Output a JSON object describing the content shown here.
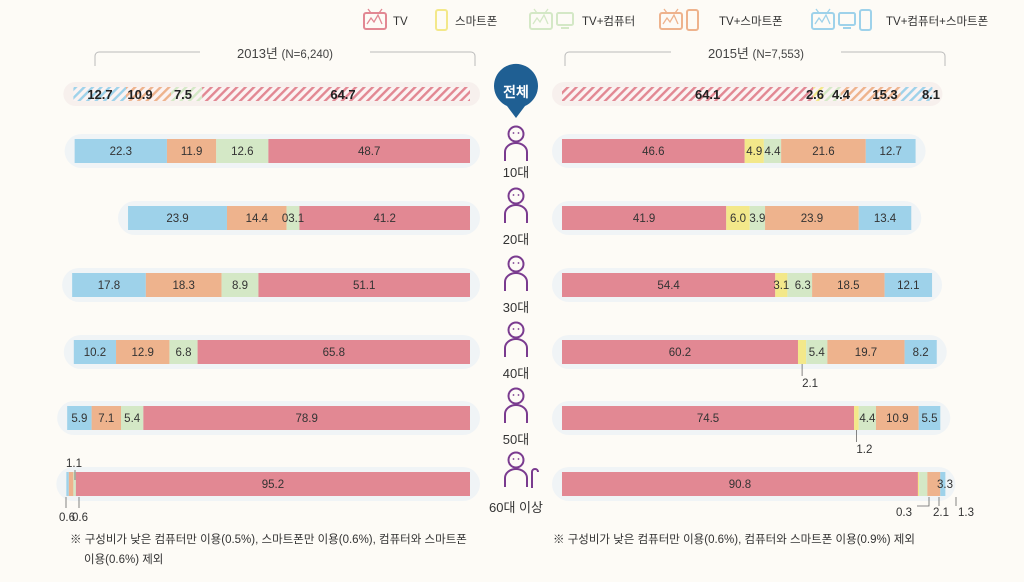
{
  "chart_data": {
    "type": "bar",
    "orientation": "horizontal-stacked",
    "legend": {
      "placement": "top-right",
      "items": [
        {
          "key": "tv",
          "label": "TV",
          "icon": "tv-icon",
          "color": "#e28893"
        },
        {
          "key": "sp",
          "label": "스마트폰",
          "icon": "smartphone-icon",
          "color": "#f3e88a"
        },
        {
          "key": "tvpc",
          "label": "TV+컴퓨터",
          "icon": "tv-computer-icon",
          "color": "#d4e8c6"
        },
        {
          "key": "tvsp",
          "label": "TV+스마트폰",
          "icon": "tv-smartphone-icon",
          "color": "#eeb38d"
        },
        {
          "key": "all",
          "label": "TV+컴퓨터+스마트폰",
          "icon": "tv-computer-smartphone-icon",
          "color": "#9ed2ea"
        }
      ]
    },
    "left": {
      "title": "2013년",
      "n_label": "(N=6,240)",
      "order": [
        "all",
        "tvsp",
        "tvpc",
        "tv"
      ],
      "rows": [
        {
          "values": [
            12.7,
            10.9,
            7.5,
            64.7
          ],
          "labels": [
            "12.7",
            "10.9",
            "7.5",
            "64.7"
          ]
        },
        {
          "values": [
            22.3,
            11.9,
            12.6,
            48.7
          ],
          "labels": [
            "22.3",
            "11.9",
            "12.6",
            "48.7"
          ]
        },
        {
          "values": [
            23.9,
            14.4,
            3.1,
            41.2
          ],
          "labels": [
            "23.9",
            "14.4",
            "03.1",
            "41.2"
          ]
        },
        {
          "values": [
            17.8,
            18.3,
            8.9,
            51.1
          ],
          "labels": [
            "17.8",
            "18.3",
            "8.9",
            "51.1"
          ]
        },
        {
          "values": [
            10.2,
            12.9,
            6.8,
            65.8
          ],
          "labels": [
            "10.2",
            "12.9",
            "6.8",
            "65.8"
          ]
        },
        {
          "values": [
            5.9,
            7.1,
            5.4,
            78.9
          ],
          "labels": [
            "5.9",
            "7.1",
            "5.4",
            "78.9"
          ]
        },
        {
          "values": [
            0.6,
            1.1,
            0.6,
            95.2
          ],
          "labels": [
            "0.6",
            "1.1",
            "0.6",
            "95.2"
          ]
        }
      ]
    },
    "right": {
      "title": "2015년",
      "n_label": "(N=7,553)",
      "order": [
        "tv",
        "sp",
        "tvpc",
        "tvsp",
        "all"
      ],
      "rows": [
        {
          "values": [
            64.1,
            2.6,
            4.4,
            15.3,
            8.1
          ],
          "labels": [
            "64.1",
            "2.6",
            "4.4",
            "15.3",
            "8.1"
          ]
        },
        {
          "values": [
            46.6,
            4.9,
            4.4,
            21.6,
            12.7
          ],
          "labels": [
            "46.6",
            "4.9",
            "4.4",
            "21.6",
            "12.7"
          ]
        },
        {
          "values": [
            41.9,
            6.0,
            3.9,
            23.9,
            13.4
          ],
          "labels": [
            "41.9",
            "6.0",
            "3.9",
            "23.9",
            "13.4"
          ]
        },
        {
          "values": [
            54.4,
            3.1,
            6.3,
            18.5,
            12.1
          ],
          "labels": [
            "54.4",
            "3.1",
            "6.3",
            "18.5",
            "12.1"
          ]
        },
        {
          "values": [
            60.2,
            2.1,
            5.4,
            19.7,
            8.2
          ],
          "labels": [
            "60.2",
            "2.1",
            "5.4",
            "19.7",
            "8.2"
          ]
        },
        {
          "values": [
            74.5,
            1.2,
            4.4,
            10.9,
            5.5
          ],
          "labels": [
            "74.5",
            "1.2",
            "4.4",
            "10.9",
            "5.5"
          ]
        },
        {
          "values": [
            90.8,
            0.3,
            2.1,
            3.3,
            1.3
          ],
          "labels": [
            "90.8",
            "0.3",
            "2.1",
            "3.3",
            "1.3"
          ]
        }
      ]
    },
    "groups": [
      "전체",
      "10대",
      "20대",
      "30대",
      "40대",
      "50대",
      "60대 이상"
    ],
    "notes": {
      "left_line1": "※ 구성비가 낮은 컴퓨터만 이용(0.5%), 스마트폰만 이용(0.6%), 컴퓨터와 스마트폰",
      "left_line2": "이용(0.6%) 제외",
      "right": "※ 구성비가 낮은 컴퓨터만 이용(0.6%), 컴퓨터와 스마트폰 이용(0.9%) 제외"
    }
  }
}
